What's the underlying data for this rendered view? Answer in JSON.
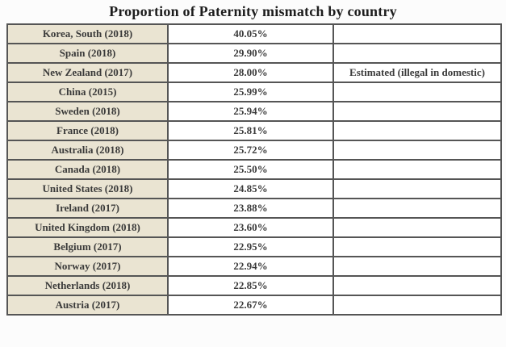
{
  "page": {
    "title": "Proportion of Paternity mismatch by country"
  },
  "colors": {
    "page_bg": "#fcfcfc",
    "label_column_bg": "#eae4d2",
    "table_border": "#555555",
    "text": "#3a3a3a",
    "cell_bg": "#ffffff"
  },
  "chart_data": {
    "type": "table",
    "title": "Proportion of Paternity mismatch by country",
    "rows": [
      {
        "country": "Korea, South (2018)",
        "value": "40.05%",
        "note": ""
      },
      {
        "country": "Spain (2018)",
        "value": "29.90%",
        "note": ""
      },
      {
        "country": "New Zealand (2017)",
        "value": "28.00%",
        "note": "Estimated (illegal in domestic)"
      },
      {
        "country": "China (2015)",
        "value": "25.99%",
        "note": ""
      },
      {
        "country": "Sweden (2018)",
        "value": "25.94%",
        "note": ""
      },
      {
        "country": "France (2018)",
        "value": "25.81%",
        "note": ""
      },
      {
        "country": "Australia (2018)",
        "value": "25.72%",
        "note": ""
      },
      {
        "country": "Canada (2018)",
        "value": "25.50%",
        "note": ""
      },
      {
        "country": "United States (2018)",
        "value": "24.85%",
        "note": ""
      },
      {
        "country": "Ireland (2017)",
        "value": "23.88%",
        "note": ""
      },
      {
        "country": "United Kingdom (2018)",
        "value": "23.60%",
        "note": ""
      },
      {
        "country": "Belgium (2017)",
        "value": "22.95%",
        "note": ""
      },
      {
        "country": "Norway (2017)",
        "value": "22.94%",
        "note": ""
      },
      {
        "country": "Netherlands (2018)",
        "value": "22.85%",
        "note": ""
      },
      {
        "country": "Austria (2017)",
        "value": "22.67%",
        "note": ""
      }
    ],
    "values_numeric": [
      40.05,
      29.9,
      28.0,
      25.99,
      25.94,
      25.81,
      25.72,
      25.5,
      24.85,
      23.88,
      23.6,
      22.95,
      22.94,
      22.85,
      22.67
    ],
    "layout": {
      "columns_visible_headers": false,
      "label_column_position": "left",
      "grid": true
    }
  }
}
